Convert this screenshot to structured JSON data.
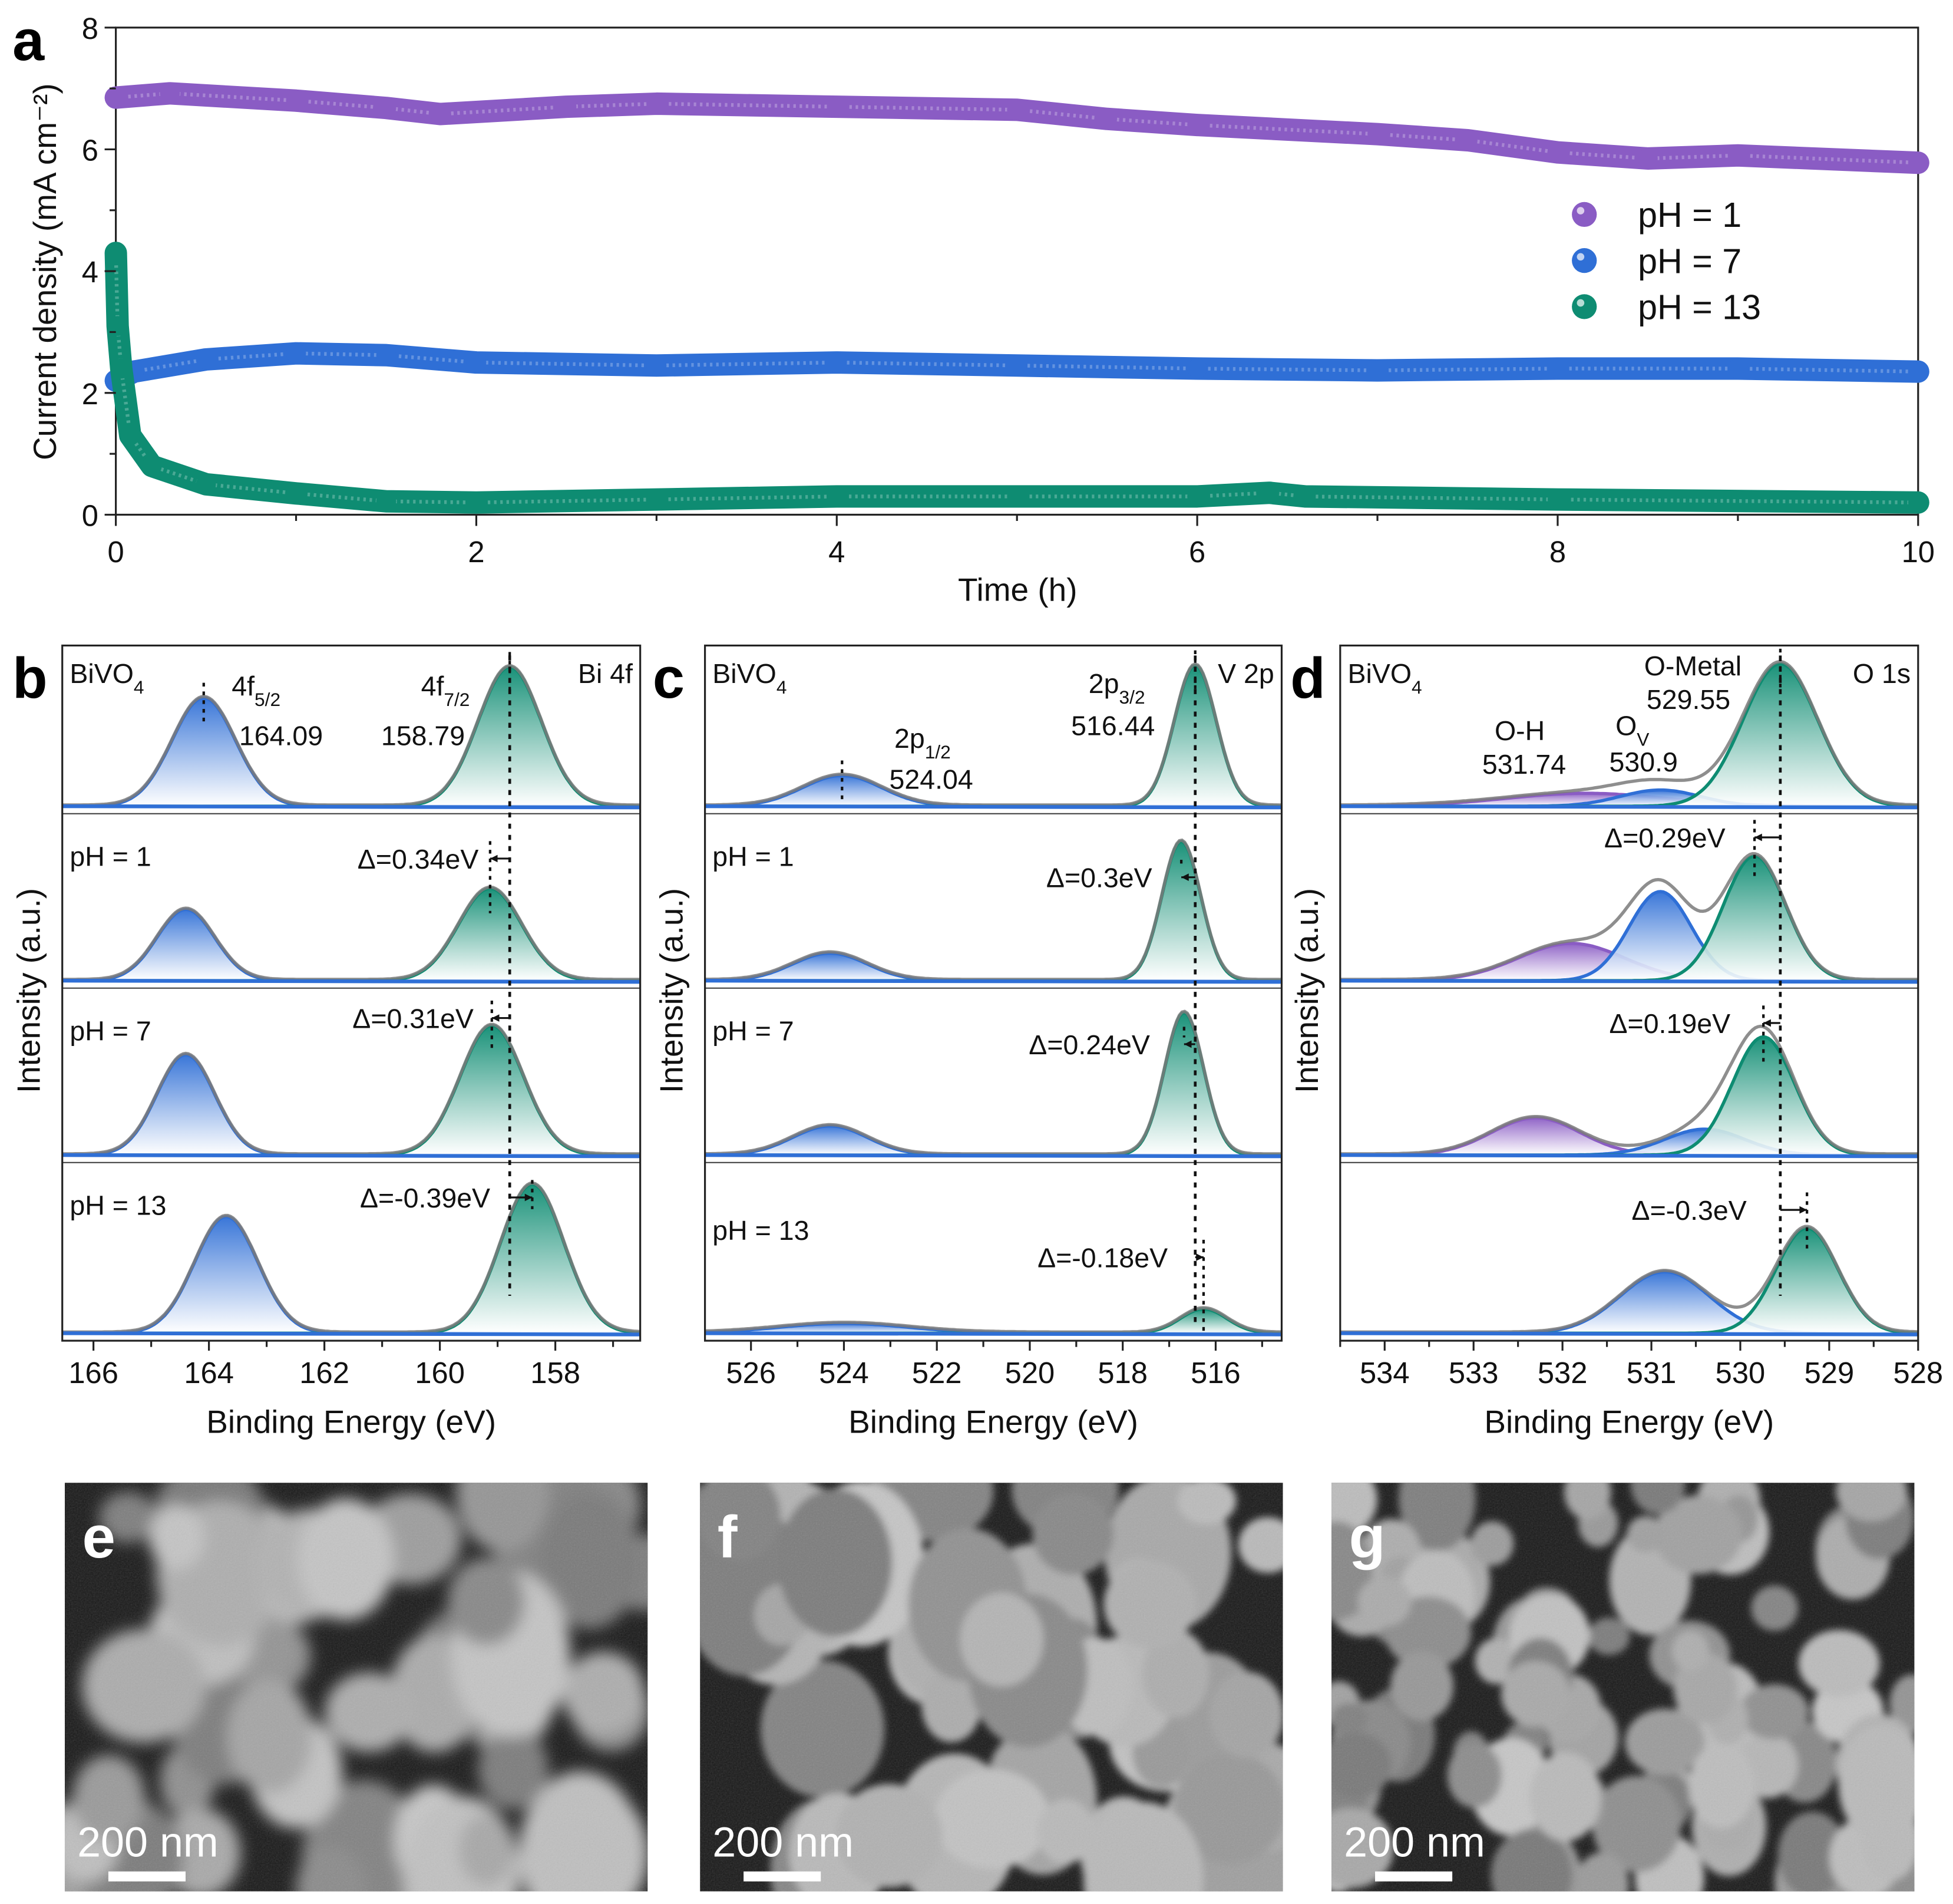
{
  "colors": {
    "pH1": "#8a5cc4",
    "pH7": "#2f6fd6",
    "pH13": "#0e8c72",
    "envelope": "#7a7a7a"
  },
  "panel_labels": {
    "a": "a",
    "b": "b",
    "c": "c",
    "d": "d",
    "e": "e",
    "f": "f",
    "g": "g"
  },
  "chart_data": [
    {
      "id": "a",
      "type": "scatter",
      "xlabel": "Time (h)",
      "ylabel": "Current density (mA cm⁻²)",
      "xlim": [
        0,
        10
      ],
      "ylim": [
        0,
        8
      ],
      "xticks": [
        "0",
        "2",
        "4",
        "6",
        "8",
        "10"
      ],
      "yticks": [
        "0",
        "2",
        "4",
        "6",
        "8"
      ],
      "legend_placement": "right",
      "series": [
        {
          "name": "pH = 1",
          "color": "#8a5cc4",
          "points": [
            [
              0,
              6.85
            ],
            [
              0.3,
              6.92
            ],
            [
              1,
              6.8
            ],
            [
              1.5,
              6.68
            ],
            [
              1.8,
              6.58
            ],
            [
              2.5,
              6.7
            ],
            [
              3,
              6.75
            ],
            [
              4,
              6.7
            ],
            [
              5,
              6.65
            ],
            [
              5.5,
              6.5
            ],
            [
              6,
              6.4
            ],
            [
              7,
              6.25
            ],
            [
              7.5,
              6.15
            ],
            [
              8,
              5.95
            ],
            [
              8.5,
              5.85
            ],
            [
              9,
              5.9
            ],
            [
              10,
              5.78
            ]
          ]
        },
        {
          "name": "pH = 7",
          "color": "#2f6fd6",
          "points": [
            [
              0,
              2.2
            ],
            [
              0.1,
              2.35
            ],
            [
              0.5,
              2.55
            ],
            [
              1,
              2.65
            ],
            [
              1.5,
              2.62
            ],
            [
              2,
              2.5
            ],
            [
              3,
              2.45
            ],
            [
              4,
              2.5
            ],
            [
              5,
              2.45
            ],
            [
              6,
              2.4
            ],
            [
              7,
              2.37
            ],
            [
              8,
              2.4
            ],
            [
              9,
              2.4
            ],
            [
              10,
              2.35
            ]
          ]
        },
        {
          "name": "pH = 13",
          "color": "#0e8c72",
          "points": [
            [
              0,
              4.3
            ],
            [
              0.01,
              3.1
            ],
            [
              0.03,
              2.4
            ],
            [
              0.08,
              1.3
            ],
            [
              0.2,
              0.8
            ],
            [
              0.5,
              0.5
            ],
            [
              1,
              0.35
            ],
            [
              1.5,
              0.22
            ],
            [
              2,
              0.2
            ],
            [
              3,
              0.25
            ],
            [
              4,
              0.3
            ],
            [
              5,
              0.3
            ],
            [
              6,
              0.3
            ],
            [
              6.4,
              0.36
            ],
            [
              6.6,
              0.3
            ],
            [
              8,
              0.25
            ],
            [
              10,
              0.2
            ]
          ]
        }
      ]
    },
    {
      "id": "b",
      "type": "line",
      "title": "Bi 4f",
      "xlabel": "Binding Energy (eV)",
      "ylabel": "Intensity (a.u.)",
      "xlim": [
        166.54,
        156.53
      ],
      "xticks": [
        "166",
        "164",
        "162",
        "160",
        "158"
      ],
      "reference_eV": 158.79,
      "rows": [
        {
          "label": "BiVO",
          "label_sub": "4",
          "peaks": [
            {
              "center": 164.09,
              "height": 0.67,
              "width": 0.55,
              "color": "#2f6fd6"
            },
            {
              "center": 158.79,
              "height": 0.86,
              "width": 0.55,
              "color": "#0e8c72"
            }
          ],
          "notes": [
            {
              "main": "4f",
              "sub": "5/2"
            },
            {
              "main": "164.09",
              "sub": ""
            },
            {
              "main": "4f",
              "sub": "7/2"
            },
            {
              "main": "158.79",
              "sub": ""
            }
          ]
        },
        {
          "label": "pH = 1",
          "shift": "Δ=0.34eV",
          "peaks": [
            {
              "center": 164.4,
              "height": 0.44,
              "width": 0.5,
              "color": "#2f6fd6"
            },
            {
              "center": 159.13,
              "height": 0.57,
              "width": 0.55,
              "color": "#0e8c72"
            }
          ]
        },
        {
          "label": "pH = 7",
          "shift": "Δ=0.31eV",
          "peaks": [
            {
              "center": 164.4,
              "height": 0.62,
              "width": 0.5,
              "color": "#2f6fd6"
            },
            {
              "center": 159.1,
              "height": 0.8,
              "width": 0.55,
              "color": "#0e8c72"
            }
          ]
        },
        {
          "label": "pH = 13",
          "shift": "Δ=-0.39eV",
          "peaks": [
            {
              "center": 163.7,
              "height": 0.72,
              "width": 0.55,
              "color": "#2f6fd6"
            },
            {
              "center": 158.4,
              "height": 0.92,
              "width": 0.55,
              "color": "#0e8c72"
            }
          ]
        }
      ]
    },
    {
      "id": "c",
      "type": "line",
      "title": "V 2p",
      "xlabel": "Binding Energy (eV)",
      "ylabel": "Intensity (a.u.)",
      "xlim": [
        526.99,
        514.58
      ],
      "xticks": [
        "526",
        "524",
        "522",
        "520",
        "518",
        "516"
      ],
      "reference_eV": 516.44,
      "rows": [
        {
          "label": "BiVO",
          "label_sub": "4",
          "peaks": [
            {
              "center": 524.04,
              "height": 0.19,
              "width": 0.85,
              "color": "#2f6fd6"
            },
            {
              "center": 516.44,
              "height": 0.87,
              "width": 0.45,
              "color": "#0e8c72"
            }
          ],
          "notes": [
            {
              "main": "2p",
              "sub": "1/2"
            },
            {
              "main": "524.04",
              "sub": ""
            },
            {
              "main": "2p",
              "sub": "3/2"
            },
            {
              "main": "516.44",
              "sub": ""
            }
          ]
        },
        {
          "label": "pH = 1",
          "shift": "Δ=0.3eV",
          "peaks": [
            {
              "center": 524.3,
              "height": 0.17,
              "width": 0.8,
              "color": "#2f6fd6"
            },
            {
              "center": 516.74,
              "height": 0.86,
              "width": 0.42,
              "color": "#0e8c72"
            }
          ]
        },
        {
          "label": "pH = 7",
          "shift": "Δ=0.24eV",
          "peaks": [
            {
              "center": 524.3,
              "height": 0.18,
              "width": 0.8,
              "color": "#2f6fd6"
            },
            {
              "center": 516.68,
              "height": 0.88,
              "width": 0.42,
              "color": "#0e8c72"
            }
          ]
        },
        {
          "label": "pH = 13",
          "shift": "Δ=-0.18eV",
          "peaks": [
            {
              "center": 524.0,
              "height": 0.06,
              "width": 1.4,
              "color": "#2f6fd6"
            },
            {
              "center": 516.26,
              "height": 0.15,
              "width": 0.5,
              "color": "#0e8c72"
            }
          ]
        }
      ]
    },
    {
      "id": "d",
      "type": "line",
      "title": "O 1s",
      "xlabel": "Binding Energy (eV)",
      "ylabel": "Intensity (a.u.)",
      "xlim": [
        534.5,
        528.0
      ],
      "xticks": [
        "534",
        "533",
        "532",
        "531",
        "530",
        "529",
        "528"
      ],
      "reference_eV": 529.55,
      "rows": [
        {
          "label": "BiVO",
          "label_sub": "4",
          "peaks": [
            {
              "center": 531.74,
              "height": 0.08,
              "width": 0.9,
              "color": "#8a5cc4"
            },
            {
              "center": 530.9,
              "height": 0.1,
              "width": 0.45,
              "color": "#2f6fd6"
            },
            {
              "center": 529.55,
              "height": 0.88,
              "width": 0.42,
              "color": "#0e8c72"
            }
          ],
          "notes": [
            {
              "main": "O-H",
              "sub": ""
            },
            {
              "main": "531.74",
              "sub": ""
            },
            {
              "main": "O",
              "sub": "V"
            },
            {
              "main": "530.9",
              "sub": ""
            },
            {
              "main": "O-Metal",
              "sub": ""
            },
            {
              "main": "529.55",
              "sub": ""
            }
          ]
        },
        {
          "label": "",
          "shift": "Δ=0.29eV",
          "peaks": [
            {
              "center": 531.9,
              "height": 0.23,
              "width": 0.6,
              "color": "#8a5cc4"
            },
            {
              "center": 530.9,
              "height": 0.55,
              "width": 0.35,
              "color": "#2f6fd6"
            },
            {
              "center": 529.84,
              "height": 0.77,
              "width": 0.35,
              "color": "#0e8c72"
            }
          ]
        },
        {
          "label": "",
          "shift": "Δ=0.19eV",
          "peaks": [
            {
              "center": 532.3,
              "height": 0.23,
              "width": 0.5,
              "color": "#8a5cc4"
            },
            {
              "center": 530.4,
              "height": 0.16,
              "width": 0.45,
              "color": "#2f6fd6"
            },
            {
              "center": 529.74,
              "height": 0.73,
              "width": 0.35,
              "color": "#0e8c72"
            }
          ]
        },
        {
          "label": "",
          "shift": "Δ=-0.3eV",
          "peaks": [
            {
              "center": 530.85,
              "height": 0.38,
              "width": 0.5,
              "color": "#2f6fd6"
            },
            {
              "center": 529.25,
              "height": 0.65,
              "width": 0.35,
              "color": "#0e8c72"
            }
          ]
        }
      ]
    }
  ],
  "sem": [
    {
      "id": "e",
      "scale_bar": "200 nm"
    },
    {
      "id": "f",
      "scale_bar": "200 nm"
    },
    {
      "id": "g",
      "scale_bar": "200 nm"
    }
  ]
}
